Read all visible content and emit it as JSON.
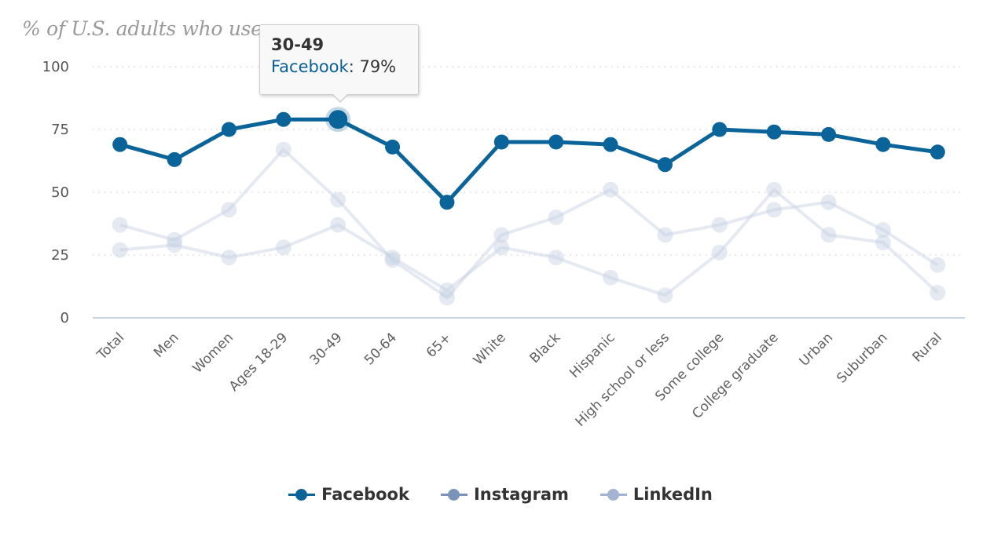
{
  "chart_data": {
    "type": "line",
    "subtitle": "% of U.S. adults who use ...",
    "categories": [
      "Total",
      "Men",
      "Women",
      "Ages 18-29",
      "30-49",
      "50-64",
      "65+",
      "White",
      "Black",
      "Hispanic",
      "High school or less",
      "Some college",
      "College graduate",
      "Urban",
      "Suburban",
      "Rural"
    ],
    "series": [
      {
        "name": "Facebook",
        "color": "#0a6399",
        "highlighted": true,
        "values": [
          69,
          63,
          75,
          79,
          79,
          68,
          46,
          70,
          70,
          69,
          61,
          75,
          74,
          73,
          69,
          66
        ]
      },
      {
        "name": "Instagram",
        "color": "#7b93b9",
        "highlighted": false,
        "values": [
          37,
          31,
          43,
          67,
          47,
          23,
          8,
          33,
          40,
          51,
          33,
          37,
          43,
          46,
          35,
          21
        ]
      },
      {
        "name": "LinkedIn",
        "color": "#a3b3d1",
        "highlighted": false,
        "values": [
          27,
          29,
          24,
          28,
          37,
          24,
          11,
          28,
          24,
          16,
          9,
          26,
          51,
          33,
          30,
          10
        ]
      }
    ],
    "yticks": [
      0,
      25,
      50,
      75,
      100
    ],
    "ylim": [
      0,
      100
    ],
    "xlabel": "",
    "ylabel": "",
    "grid": true,
    "legend_position": "bottom-center",
    "tooltip": {
      "category": "30-49",
      "series": "Facebook",
      "value_text": "79%"
    }
  }
}
